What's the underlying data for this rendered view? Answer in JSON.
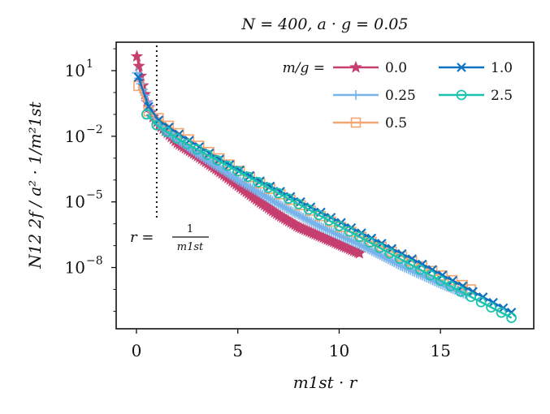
{
  "chart_data": {
    "type": "line",
    "title": "N = 400,  a · g = 0.05",
    "xlabel": "m1st · r",
    "ylabel": "N12 2f / a² · 1/m²1st",
    "xlim": [
      -1,
      19.6
    ],
    "log10_ylim": [
      -10.8,
      2.3
    ],
    "x_ticks": [
      {
        "value": 0,
        "label": "0"
      },
      {
        "value": 5,
        "label": "5"
      },
      {
        "value": 10,
        "label": "10"
      },
      {
        "value": 15,
        "label": "15"
      }
    ],
    "y_ticks": [
      {
        "log10": 1,
        "label": "10^1",
        "base": "10",
        "exp": "1"
      },
      {
        "log10": -2,
        "label": "10^-2",
        "base": "10",
        "exp": "−2"
      },
      {
        "log10": -5,
        "label": "10^-5",
        "base": "10",
        "exp": "−5"
      },
      {
        "log10": -8,
        "label": "10^-8",
        "base": "10",
        "exp": "−8"
      }
    ],
    "annotation": {
      "text_left": "r =",
      "numerator": "1",
      "denominator": "m1st",
      "x": 1
    },
    "legend": {
      "title": "m/g =",
      "placement": "top-right"
    },
    "series": [
      {
        "name": "0.0",
        "color": "#c63f6f",
        "marker": "star",
        "step": 0.1,
        "anchors": [
          [
            0.02,
            1.65
          ],
          [
            0.1,
            1.3
          ],
          [
            0.3,
            0.4
          ],
          [
            0.5,
            -0.4
          ],
          [
            0.8,
            -1.1
          ],
          [
            1.2,
            -1.55
          ],
          [
            2,
            -2.3
          ],
          [
            3,
            -2.9
          ],
          [
            4,
            -3.55
          ],
          [
            5,
            -4.25
          ],
          [
            6,
            -4.95
          ],
          [
            7,
            -5.6
          ],
          [
            8,
            -6.15
          ],
          [
            9,
            -6.55
          ],
          [
            10,
            -6.95
          ],
          [
            11,
            -7.35
          ]
        ]
      },
      {
        "name": "0.25",
        "color": "#78b3ea",
        "marker": "plus",
        "step": 0.1,
        "anchors": [
          [
            0.02,
            0.9
          ],
          [
            0.1,
            0.7
          ],
          [
            0.3,
            0.2
          ],
          [
            0.6,
            -0.6
          ],
          [
            1,
            -1.3
          ],
          [
            1.5,
            -1.8
          ],
          [
            3,
            -2.8
          ],
          [
            5,
            -4.0
          ],
          [
            7,
            -5.1
          ],
          [
            9,
            -6.1
          ],
          [
            11,
            -6.95
          ],
          [
            13,
            -7.9
          ],
          [
            15,
            -8.75
          ],
          [
            16.3,
            -9.25
          ]
        ]
      },
      {
        "name": "0.5",
        "color": "#f3a572",
        "marker": "square",
        "step": 0.5,
        "anchors": [
          [
            0.1,
            0.3
          ],
          [
            0.5,
            -0.8
          ],
          [
            1,
            -1.1
          ],
          [
            2,
            -1.8
          ],
          [
            4,
            -2.95
          ],
          [
            6,
            -4.1
          ],
          [
            8,
            -5.1
          ],
          [
            10,
            -6.1
          ],
          [
            12,
            -7.0
          ],
          [
            14,
            -7.9
          ],
          [
            16,
            -8.75
          ],
          [
            16.5,
            -9.0
          ]
        ]
      },
      {
        "name": "1.0",
        "color": "#0f72c1",
        "marker": "x",
        "step": 0.5,
        "anchors": [
          [
            0.1,
            0.7
          ],
          [
            0.5,
            -0.5
          ],
          [
            1,
            -1.2
          ],
          [
            2,
            -1.85
          ],
          [
            4,
            -3.0
          ],
          [
            6,
            -4.0
          ],
          [
            8,
            -4.95
          ],
          [
            10,
            -5.9
          ],
          [
            12,
            -6.85
          ],
          [
            14,
            -7.8
          ],
          [
            16,
            -8.8
          ],
          [
            18.5,
            -10.05
          ]
        ]
      },
      {
        "name": "2.5",
        "color": "#1dc2ad",
        "marker": "circle",
        "step": 0.5,
        "anchors": [
          [
            0.5,
            -1.0
          ],
          [
            1,
            -1.5
          ],
          [
            2,
            -2.1
          ],
          [
            4,
            -3.1
          ],
          [
            6,
            -4.1
          ],
          [
            8,
            -5.1
          ],
          [
            10,
            -6.1
          ],
          [
            12,
            -7.1
          ],
          [
            14,
            -8.1
          ],
          [
            16,
            -9.1
          ],
          [
            18.5,
            -10.3
          ]
        ]
      }
    ]
  }
}
